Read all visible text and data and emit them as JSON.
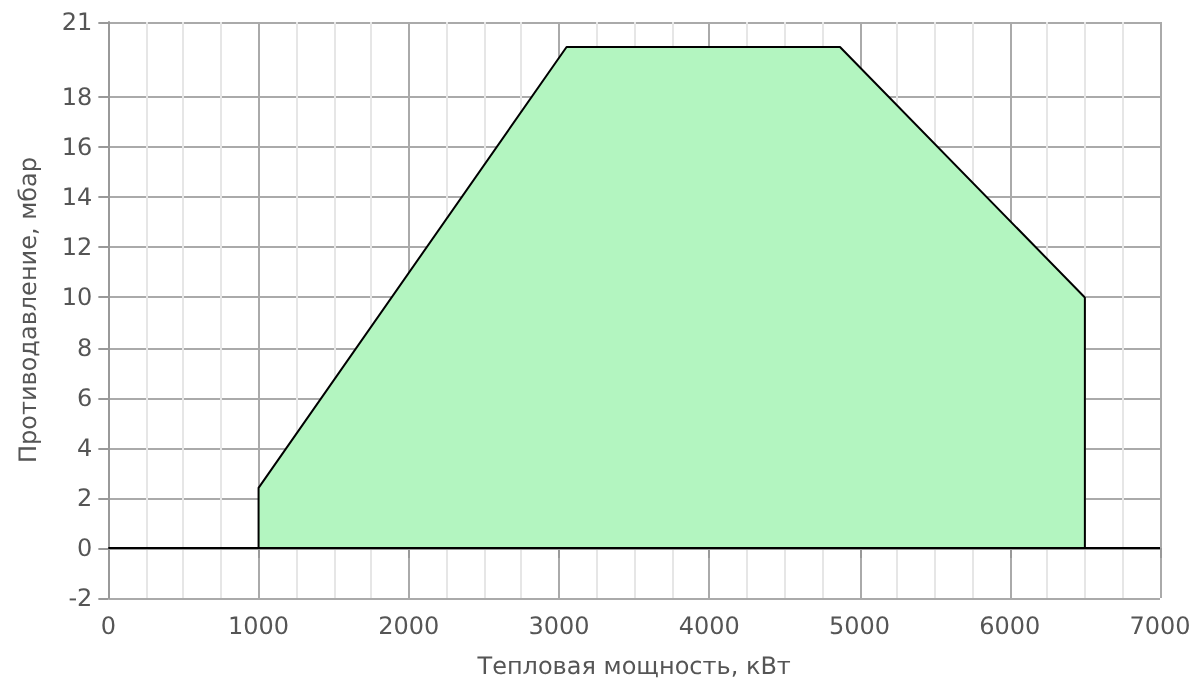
{
  "chart_data": {
    "type": "area",
    "xlabel": "Тепловая мощность, кВт",
    "ylabel": "Противодавление, мбар",
    "series": [
      {
        "color": "#b3f5c0",
        "x": [
          1000,
          1000,
          3050,
          4870,
          6500,
          6500
        ],
        "values": [
          0,
          2.4,
          20,
          20,
          10,
          0
        ]
      }
    ],
    "xlim": [
      0,
      7000
    ],
    "xticks": [
      0,
      1000,
      2000,
      3000,
      4000,
      5000,
      6000,
      7000
    ],
    "ylim": [
      -2,
      21
    ],
    "yticks": [
      -2,
      0,
      2,
      4,
      6,
      8,
      10,
      12,
      14,
      16,
      18,
      21
    ],
    "ref_lines": [
      {
        "axis": "y",
        "value": 0,
        "color": "#000000"
      }
    ],
    "grid": true
  }
}
